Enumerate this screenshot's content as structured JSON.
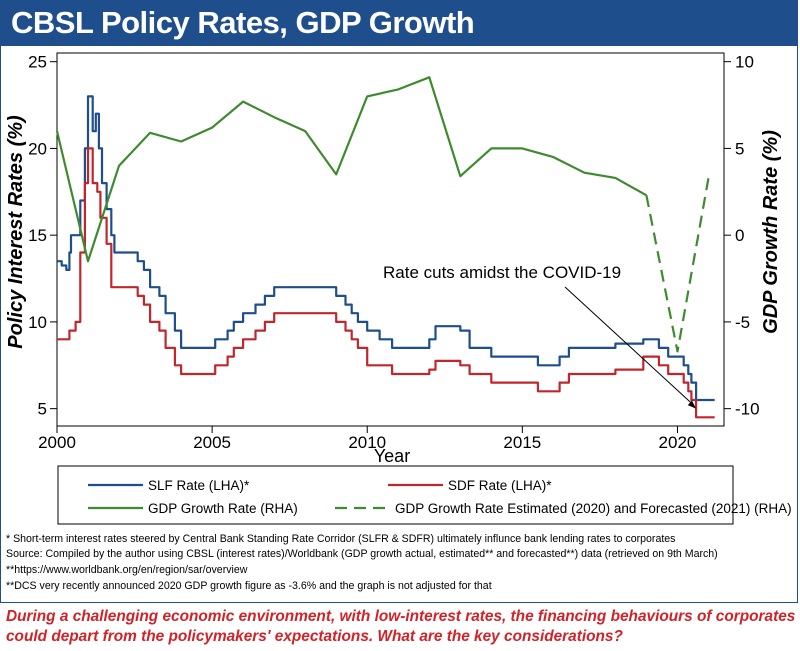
{
  "header": {
    "title": "CBSL Policy Rates, GDP Growth"
  },
  "chart_data": {
    "type": "line",
    "xlabel": "Year",
    "ylabel_left": "Policy Interest Rates (%)",
    "ylabel_right": "GDP Growth Rate (%)",
    "xlim": [
      2000,
      2021.5
    ],
    "ylim_left": [
      4,
      25.5
    ],
    "ylim_right": [
      -11,
      10.5
    ],
    "x_ticks": [
      2000,
      2005,
      2010,
      2015,
      2020
    ],
    "y_ticks_left": [
      5,
      10,
      15,
      20,
      25
    ],
    "y_ticks_right": [
      -10,
      -5,
      0,
      5,
      10
    ],
    "grid": false,
    "legend_position": "bottom",
    "colors": {
      "slf": "#1f4e8c",
      "sdf": "#c0272d",
      "gdp": "#3e8a2e"
    },
    "series": [
      {
        "name": "SLF Rate (LHA)*",
        "axis": "left",
        "style": "solid",
        "points": [
          [
            2000.0,
            13.5
          ],
          [
            2000.15,
            13.5
          ],
          [
            2000.15,
            13.25
          ],
          [
            2000.3,
            13.25
          ],
          [
            2000.3,
            13.0
          ],
          [
            2000.4,
            13.0
          ],
          [
            2000.4,
            14.0
          ],
          [
            2000.45,
            14.0
          ],
          [
            2000.45,
            15.0
          ],
          [
            2000.75,
            15.0
          ],
          [
            2000.75,
            17.0
          ],
          [
            2000.9,
            17.0
          ],
          [
            2000.9,
            20.0
          ],
          [
            2001.0,
            20.0
          ],
          [
            2001.0,
            23.0
          ],
          [
            2001.15,
            23.0
          ],
          [
            2001.15,
            21.0
          ],
          [
            2001.25,
            21.0
          ],
          [
            2001.25,
            22.0
          ],
          [
            2001.35,
            22.0
          ],
          [
            2001.35,
            20.0
          ],
          [
            2001.45,
            20.0
          ],
          [
            2001.45,
            18.0
          ],
          [
            2001.6,
            18.0
          ],
          [
            2001.6,
            16.5
          ],
          [
            2001.75,
            16.5
          ],
          [
            2001.75,
            15.0
          ],
          [
            2001.85,
            15.0
          ],
          [
            2001.85,
            14.0
          ],
          [
            2002.6,
            14.0
          ],
          [
            2002.6,
            13.5
          ],
          [
            2002.8,
            13.5
          ],
          [
            2002.8,
            13.0
          ],
          [
            2003.0,
            13.0
          ],
          [
            2003.0,
            12.0
          ],
          [
            2003.3,
            12.0
          ],
          [
            2003.3,
            11.5
          ],
          [
            2003.5,
            11.5
          ],
          [
            2003.5,
            10.5
          ],
          [
            2003.8,
            10.5
          ],
          [
            2003.8,
            9.5
          ],
          [
            2004.0,
            9.5
          ],
          [
            2004.0,
            8.5
          ],
          [
            2005.1,
            8.5
          ],
          [
            2005.1,
            9.0
          ],
          [
            2005.5,
            9.0
          ],
          [
            2005.5,
            9.5
          ],
          [
            2005.7,
            9.5
          ],
          [
            2005.7,
            10.0
          ],
          [
            2006.0,
            10.0
          ],
          [
            2006.0,
            10.5
          ],
          [
            2006.4,
            10.5
          ],
          [
            2006.4,
            11.0
          ],
          [
            2006.7,
            11.0
          ],
          [
            2006.7,
            11.5
          ],
          [
            2007.0,
            11.5
          ],
          [
            2007.0,
            12.0
          ],
          [
            2009.0,
            12.0
          ],
          [
            2009.0,
            11.5
          ],
          [
            2009.3,
            11.5
          ],
          [
            2009.3,
            11.0
          ],
          [
            2009.5,
            11.0
          ],
          [
            2009.5,
            10.5
          ],
          [
            2009.7,
            10.5
          ],
          [
            2009.7,
            10.0
          ],
          [
            2010.0,
            10.0
          ],
          [
            2010.0,
            9.5
          ],
          [
            2010.4,
            9.5
          ],
          [
            2010.4,
            9.0
          ],
          [
            2010.8,
            9.0
          ],
          [
            2010.8,
            8.5
          ],
          [
            2012.0,
            8.5
          ],
          [
            2012.0,
            9.0
          ],
          [
            2012.2,
            9.0
          ],
          [
            2012.2,
            9.75
          ],
          [
            2013.0,
            9.75
          ],
          [
            2013.0,
            9.5
          ],
          [
            2013.3,
            9.5
          ],
          [
            2013.3,
            8.5
          ],
          [
            2014.0,
            8.5
          ],
          [
            2014.0,
            8.0
          ],
          [
            2015.5,
            8.0
          ],
          [
            2015.5,
            7.5
          ],
          [
            2016.2,
            7.5
          ],
          [
            2016.2,
            8.0
          ],
          [
            2016.5,
            8.0
          ],
          [
            2016.5,
            8.5
          ],
          [
            2018.0,
            8.5
          ],
          [
            2018.0,
            8.75
          ],
          [
            2018.9,
            8.75
          ],
          [
            2018.9,
            9.0
          ],
          [
            2019.4,
            9.0
          ],
          [
            2019.4,
            8.5
          ],
          [
            2019.7,
            8.5
          ],
          [
            2019.7,
            8.0
          ],
          [
            2020.2,
            8.0
          ],
          [
            2020.2,
            7.5
          ],
          [
            2020.35,
            7.5
          ],
          [
            2020.35,
            7.0
          ],
          [
            2020.45,
            7.0
          ],
          [
            2020.45,
            6.5
          ],
          [
            2020.6,
            6.5
          ],
          [
            2020.6,
            5.5
          ],
          [
            2021.2,
            5.5
          ]
        ]
      },
      {
        "name": "SDF Rate (LHA)*",
        "axis": "left",
        "style": "solid",
        "points": [
          [
            2000.0,
            9.0
          ],
          [
            2000.4,
            9.0
          ],
          [
            2000.4,
            9.5
          ],
          [
            2000.6,
            9.5
          ],
          [
            2000.6,
            10.0
          ],
          [
            2000.75,
            10.0
          ],
          [
            2000.75,
            14.0
          ],
          [
            2000.9,
            14.0
          ],
          [
            2000.9,
            18.0
          ],
          [
            2001.0,
            18.0
          ],
          [
            2001.0,
            20.0
          ],
          [
            2001.15,
            20.0
          ],
          [
            2001.15,
            18.0
          ],
          [
            2001.3,
            18.0
          ],
          [
            2001.3,
            17.5
          ],
          [
            2001.4,
            17.5
          ],
          [
            2001.4,
            16.0
          ],
          [
            2001.6,
            16.0
          ],
          [
            2001.6,
            14.5
          ],
          [
            2001.75,
            14.5
          ],
          [
            2001.75,
            12.0
          ],
          [
            2002.6,
            12.0
          ],
          [
            2002.6,
            11.5
          ],
          [
            2002.8,
            11.5
          ],
          [
            2002.8,
            11.0
          ],
          [
            2003.0,
            11.0
          ],
          [
            2003.0,
            10.0
          ],
          [
            2003.3,
            10.0
          ],
          [
            2003.3,
            9.5
          ],
          [
            2003.5,
            9.5
          ],
          [
            2003.5,
            8.5
          ],
          [
            2003.8,
            8.5
          ],
          [
            2003.8,
            7.5
          ],
          [
            2004.0,
            7.5
          ],
          [
            2004.0,
            7.0
          ],
          [
            2005.1,
            7.0
          ],
          [
            2005.1,
            7.5
          ],
          [
            2005.5,
            7.5
          ],
          [
            2005.5,
            8.0
          ],
          [
            2005.7,
            8.0
          ],
          [
            2005.7,
            8.5
          ],
          [
            2006.0,
            8.5
          ],
          [
            2006.0,
            9.0
          ],
          [
            2006.4,
            9.0
          ],
          [
            2006.4,
            9.5
          ],
          [
            2006.7,
            9.5
          ],
          [
            2006.7,
            10.0
          ],
          [
            2007.0,
            10.0
          ],
          [
            2007.0,
            10.5
          ],
          [
            2009.0,
            10.5
          ],
          [
            2009.0,
            10.0
          ],
          [
            2009.3,
            10.0
          ],
          [
            2009.3,
            9.5
          ],
          [
            2009.5,
            9.5
          ],
          [
            2009.5,
            9.0
          ],
          [
            2009.7,
            9.0
          ],
          [
            2009.7,
            8.5
          ],
          [
            2010.0,
            8.5
          ],
          [
            2010.0,
            7.5
          ],
          [
            2010.8,
            7.5
          ],
          [
            2010.8,
            7.0
          ],
          [
            2012.0,
            7.0
          ],
          [
            2012.0,
            7.25
          ],
          [
            2012.2,
            7.25
          ],
          [
            2012.2,
            7.75
          ],
          [
            2013.0,
            7.75
          ],
          [
            2013.0,
            7.5
          ],
          [
            2013.3,
            7.5
          ],
          [
            2013.3,
            7.0
          ],
          [
            2014.0,
            7.0
          ],
          [
            2014.0,
            6.5
          ],
          [
            2015.5,
            6.5
          ],
          [
            2015.5,
            6.0
          ],
          [
            2016.2,
            6.0
          ],
          [
            2016.2,
            6.5
          ],
          [
            2016.5,
            6.5
          ],
          [
            2016.5,
            7.0
          ],
          [
            2018.0,
            7.0
          ],
          [
            2018.0,
            7.25
          ],
          [
            2018.9,
            7.25
          ],
          [
            2018.9,
            8.0
          ],
          [
            2019.4,
            8.0
          ],
          [
            2019.4,
            7.5
          ],
          [
            2019.7,
            7.5
          ],
          [
            2019.7,
            7.0
          ],
          [
            2020.2,
            7.0
          ],
          [
            2020.2,
            6.5
          ],
          [
            2020.35,
            6.5
          ],
          [
            2020.35,
            6.0
          ],
          [
            2020.45,
            6.0
          ],
          [
            2020.45,
            5.5
          ],
          [
            2020.6,
            5.5
          ],
          [
            2020.6,
            4.5
          ],
          [
            2021.2,
            4.5
          ]
        ]
      },
      {
        "name": "GDP Growth Rate (RHA)",
        "axis": "right",
        "style": "solid",
        "points": [
          [
            2000,
            6.0
          ],
          [
            2001,
            -1.5
          ],
          [
            2002,
            4.0
          ],
          [
            2003,
            5.9
          ],
          [
            2004,
            5.4
          ],
          [
            2005,
            6.2
          ],
          [
            2006,
            7.7
          ],
          [
            2007,
            6.8
          ],
          [
            2008,
            6.0
          ],
          [
            2009,
            3.5
          ],
          [
            2010,
            8.0
          ],
          [
            2011,
            8.4
          ],
          [
            2012,
            9.1
          ],
          [
            2013,
            3.4
          ],
          [
            2014,
            5.0
          ],
          [
            2015,
            5.0
          ],
          [
            2016,
            4.5
          ],
          [
            2017,
            3.6
          ],
          [
            2018,
            3.3
          ],
          [
            2019,
            2.3
          ]
        ]
      },
      {
        "name": "GDP Growth Rate Estimated (2020) and Forecasted (2021) (RHA)",
        "axis": "right",
        "style": "dashed",
        "points": [
          [
            2019,
            2.3
          ],
          [
            2020,
            -6.7
          ],
          [
            2021,
            3.3
          ]
        ]
      }
    ],
    "annotations": [
      {
        "text": "Rate cuts amidst the COVID-19",
        "x": 2008.5,
        "y_right": -2.3,
        "arrow_to": [
          2020.6,
          -10.0
        ]
      }
    ]
  },
  "notes": [
    "* Short-term interest rates steered by Central Bank Standing Rate Corridor (SLFR & SDFR) ultimately influnce bank lending rates to corporates",
    "  Source: Compiled by the author using CBSL (interest rates)/Worldbank (GDP growth actual, estimated** and forecasted**) data (retrieved on 9th March)",
    "  **https://www.worldbank.org/en/region/sar/overview",
    "  **DCS very recently announced 2020 GDP growth figure as -3.6% and the graph is not adjusted for that"
  ],
  "caption": "During a challenging economic environment, with low-interest rates, the financing behaviours of corporates could depart from the policymakers' expectations. What are the key considerations?"
}
